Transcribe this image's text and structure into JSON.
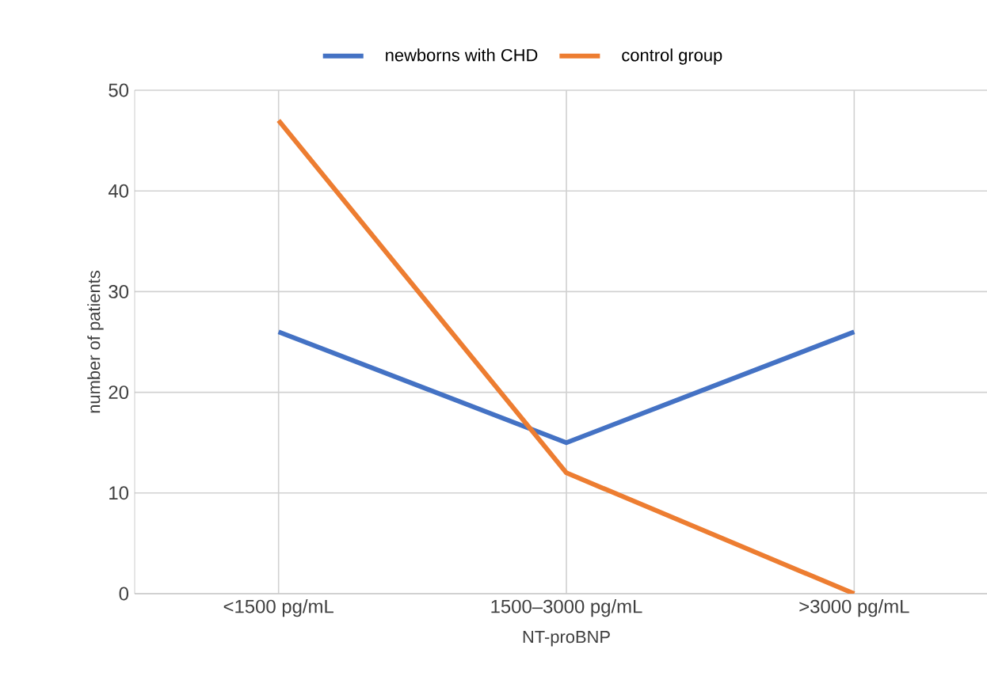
{
  "chart_data": {
    "type": "line",
    "xlabel": "NT-proBNP",
    "ylabel": "number of patients",
    "categories": [
      "<1500 pg/mL",
      "1500–3000 pg/mL",
      ">3000 pg/mL"
    ],
    "series": [
      {
        "name": "newborns with CHD",
        "color": "#4472c4",
        "values": [
          26,
          15,
          26
        ]
      },
      {
        "name": "control group",
        "color": "#ed7d31",
        "values": [
          47,
          12,
          0
        ]
      }
    ],
    "ylim": [
      0,
      50
    ],
    "yticks": [
      0,
      10,
      20,
      30,
      40,
      50
    ],
    "grid": true,
    "legend": "top",
    "marker": "none",
    "line_style": "solid"
  }
}
